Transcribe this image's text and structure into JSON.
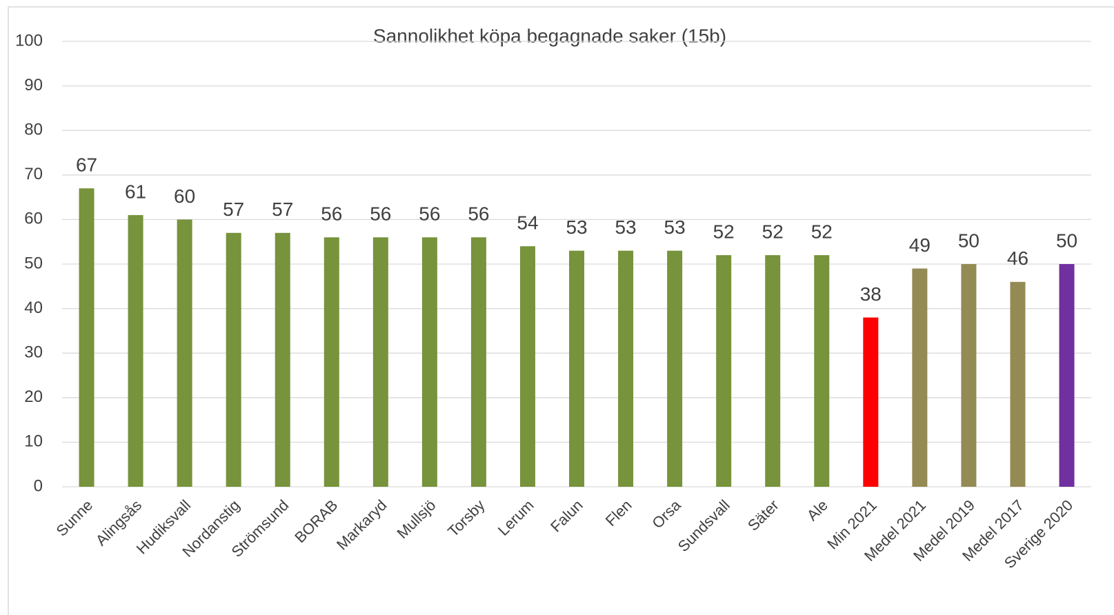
{
  "chart_data": {
    "type": "bar",
    "title": "Sannolikhet köpa begagnade saker (15b)",
    "categories": [
      "Sunne",
      "Alingsås",
      "Hudiksvall",
      "Nordanstig",
      "Strömsund",
      "BORAB",
      "Markaryd",
      "Mullsjö",
      "Torsby",
      "Lerum",
      "Falun",
      "Flen",
      "Orsa",
      "Sundsvall",
      "Säter",
      "Ale",
      "Min 2021",
      "Medel 2021",
      "Medel 2019",
      "Medel 2017",
      "Sverige 2020"
    ],
    "values": [
      67,
      61,
      60,
      57,
      57,
      56,
      56,
      56,
      56,
      54,
      53,
      53,
      53,
      52,
      52,
      52,
      38,
      49,
      50,
      46,
      50
    ],
    "colors": [
      "#77933c",
      "#77933c",
      "#77933c",
      "#77933c",
      "#77933c",
      "#77933c",
      "#77933c",
      "#77933c",
      "#77933c",
      "#77933c",
      "#77933c",
      "#77933c",
      "#77933c",
      "#77933c",
      "#77933c",
      "#77933c",
      "#ff0000",
      "#948a54",
      "#948a54",
      "#948a54",
      "#7030a0"
    ],
    "ylim": [
      0,
      100
    ],
    "yticks": [
      0,
      10,
      20,
      30,
      40,
      50,
      60,
      70,
      80,
      90,
      100
    ],
    "grid": true
  }
}
